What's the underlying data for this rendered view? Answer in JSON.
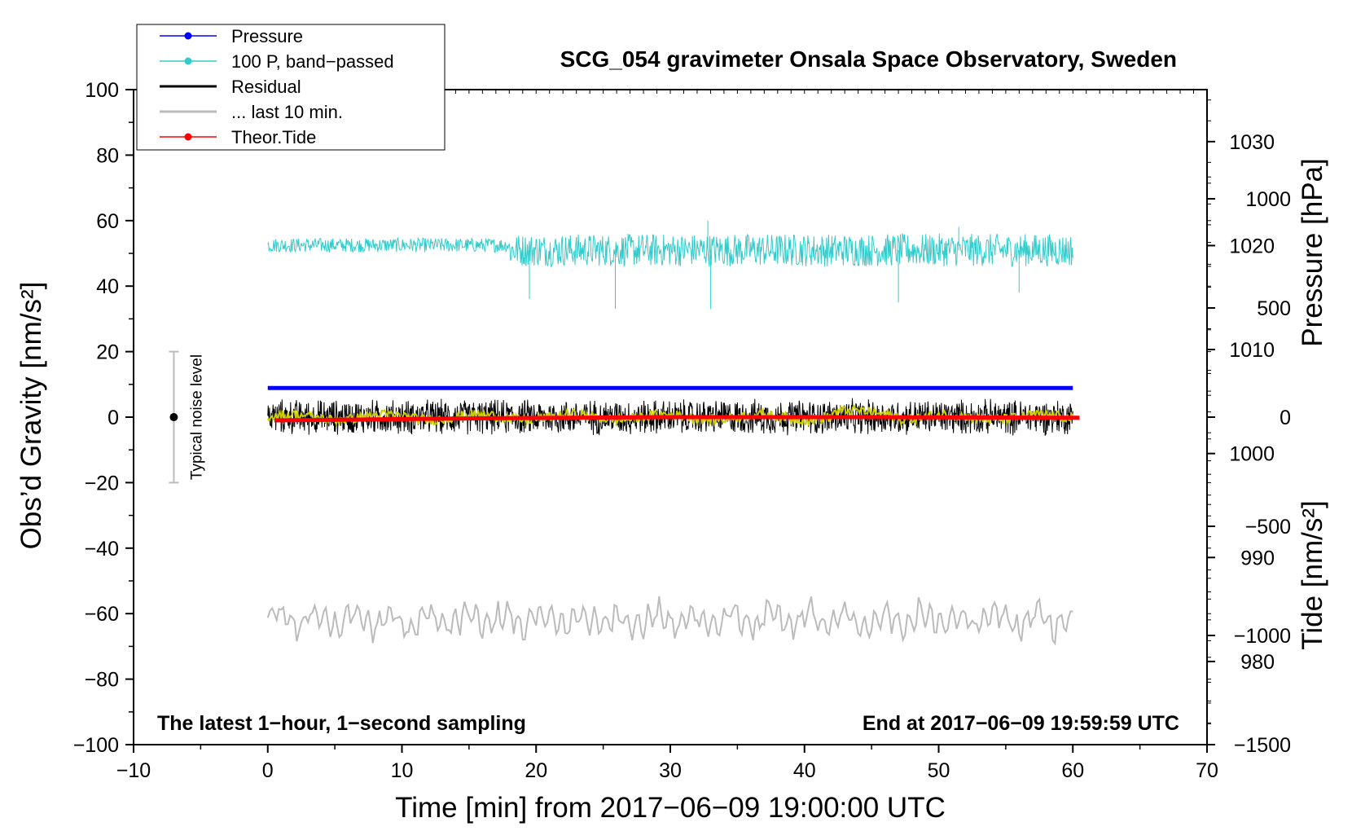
{
  "chart_data": {
    "type": "line",
    "title": "SCG_054 gravimeter Onsala Space Observatory, Sweden",
    "xlabel": "Time [min] from 2017−06−09 19:00:00 UTC",
    "ylabel_left": "Obs’d Gravity [nm/s²]",
    "ylabel_right_top": "Pressure [hPa]",
    "ylabel_right_bottom": "Tide [nm/s²]",
    "footer_left": "The latest 1−hour, 1−second sampling",
    "footer_right": "End at 2017−06−09 19:59:59 UTC",
    "noise_label": "Typical noise level",
    "noise_bar": {
      "x": -7,
      "center": 0,
      "low": -20,
      "high": 20
    },
    "xlim": [
      -10,
      70
    ],
    "ylim": [
      -100,
      100
    ],
    "pressure_ylim": [
      972,
      1035
    ],
    "tide_ylim": [
      -1500,
      1500
    ],
    "x_ticks": [
      {
        "v": -10,
        "label": "−10"
      },
      {
        "v": 0,
        "label": "0"
      },
      {
        "v": 10,
        "label": "10"
      },
      {
        "v": 20,
        "label": "20"
      },
      {
        "v": 30,
        "label": "30"
      },
      {
        "v": 40,
        "label": "40"
      },
      {
        "v": 50,
        "label": "50"
      },
      {
        "v": 60,
        "label": "60"
      },
      {
        "v": 70,
        "label": "70"
      }
    ],
    "y_ticks": [
      {
        "v": 100,
        "label": "100"
      },
      {
        "v": 80,
        "label": "80"
      },
      {
        "v": 60,
        "label": "60"
      },
      {
        "v": 40,
        "label": "40"
      },
      {
        "v": 20,
        "label": "20"
      },
      {
        "v": 0,
        "label": "0"
      },
      {
        "v": -20,
        "label": "−20"
      },
      {
        "v": -40,
        "label": "−40"
      },
      {
        "v": -60,
        "label": "−60"
      },
      {
        "v": -80,
        "label": "−80"
      },
      {
        "v": -100,
        "label": "−100"
      }
    ],
    "pressure_ticks": [
      {
        "v": 1030,
        "label": "1030"
      },
      {
        "v": 1020,
        "label": "1020"
      },
      {
        "v": 1010,
        "label": "1010"
      },
      {
        "v": 1000,
        "label": "1000"
      },
      {
        "v": 990,
        "label": "990"
      },
      {
        "v": 980,
        "label": "980"
      }
    ],
    "tide_ticks": [
      {
        "v": 1000,
        "label": "1000"
      },
      {
        "v": 500,
        "label": "500"
      },
      {
        "v": 0,
        "label": "0"
      },
      {
        "v": -500,
        "label": "−500"
      },
      {
        "v": -1000,
        "label": "−1000"
      },
      {
        "v": -1500,
        "label": "−1500"
      }
    ],
    "legend": [
      {
        "name": "Pressure",
        "color": "#0000ff",
        "marker": true
      },
      {
        "name": "100 P, band−passed",
        "color": "#33cccc",
        "marker": true
      },
      {
        "name": "Residual",
        "color": "#000000",
        "marker": false
      },
      {
        "name": "... last 10 min.",
        "color": "#bbbbbb",
        "marker": false
      },
      {
        "name": "Theor.Tide",
        "color": "#ff0000",
        "marker": true
      }
    ],
    "series": [
      {
        "name": "Pressure",
        "color": "#0000ff",
        "axis": "pressure",
        "x": [
          0,
          60
        ],
        "values": [
          1006.3,
          1006.3
        ]
      },
      {
        "name": "100 P, band−passed",
        "color": "#33cccc",
        "axis": "gravity",
        "x_range": [
          0,
          60
        ],
        "baseline": 51,
        "noise_amplitude": 5,
        "spikes_min": [
          {
            "x": 19.5,
            "y": 36
          },
          {
            "x": 25.9,
            "y": 33
          },
          {
            "x": 32.8,
            "y": 60
          },
          {
            "x": 33.0,
            "y": 33
          },
          {
            "x": 47.0,
            "y": 35
          },
          {
            "x": 51.5,
            "y": 58
          },
          {
            "x": 56.0,
            "y": 38
          }
        ]
      },
      {
        "name": "Residual",
        "color": "#000000",
        "axis": "gravity",
        "x_range": [
          0,
          60
        ],
        "baseline": 0,
        "noise_amplitude": 5
      },
      {
        "name": "Residual (smoothed)",
        "color": "#cccc00",
        "axis": "gravity",
        "x_range": [
          0,
          60
        ],
        "baseline": 0,
        "noise_amplitude": 1.5
      },
      {
        "name": "... last 10 min.",
        "color": "#bbbbbb",
        "axis": "gravity",
        "x_range": [
          0,
          60
        ],
        "baseline": -62,
        "noise_amplitude": 4
      },
      {
        "name": "Theor.Tide",
        "color": "#ff0000",
        "axis": "tide",
        "x": [
          0.5,
          17,
          30,
          45,
          60.5
        ],
        "values": [
          -15,
          -5,
          0,
          0,
          -3
        ]
      }
    ]
  }
}
